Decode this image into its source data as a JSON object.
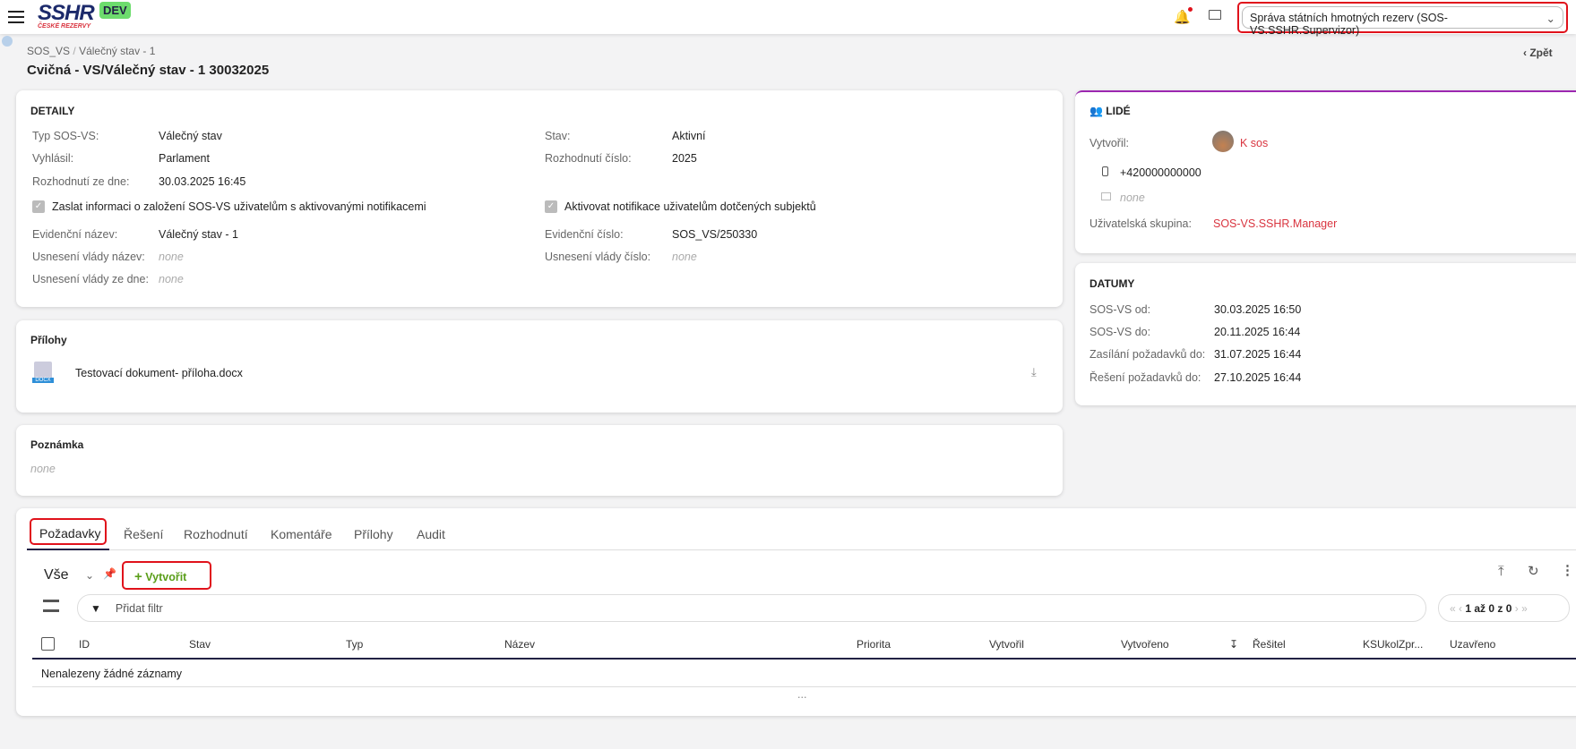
{
  "header": {
    "logo_text": "SSHR",
    "logo_sub": "ČESKÉ REZERVY",
    "env_badge": "DEV",
    "org_select": "Správa státních hmotných rezerv (SOS-VS.SSHR.Supervizor)",
    "colors": {
      "badge": "#6ddc6d",
      "accent": "#d9343f"
    }
  },
  "breadcrumb": [
    "SOS_VS",
    "Válečný stav - 1"
  ],
  "page_title": "Cvičná - VS/Válečný stav - 1 30032025",
  "back_label": "Zpět",
  "detail": {
    "title": "DETAILY",
    "fields": [
      {
        "label": "Typ SOS-VS:",
        "value": "Válečný stav"
      },
      {
        "label": "Stav:",
        "value": "Aktivní"
      },
      {
        "label": "Vyhlásil:",
        "value": "Parlament"
      },
      {
        "label": "Rozhodnutí číslo:",
        "value": "2025"
      },
      {
        "label": "Rozhodnutí ze dne:",
        "value": "30.03.2025 16:45"
      },
      {
        "label": "Evidenční název:",
        "value": "Válečný stav - 1"
      },
      {
        "label": "Evidenční číslo:",
        "value": "SOS_VS/250330"
      },
      {
        "label": "Usnesení vlády název:",
        "value": "none"
      },
      {
        "label": "Usnesení vlády číslo:",
        "value": "none"
      },
      {
        "label": "Usnesení vlády ze dne:",
        "value": "none"
      }
    ],
    "check1": "Zaslat informaci o založení SOS-VS uživatelům s aktivovanými notifikacemi",
    "check2": "Aktivovat notifikace uživatelům dotčených subjektů"
  },
  "attachments": {
    "title": "Přílohy",
    "file": "Testovací dokument- příloha.docx",
    "file_type": "DOCX"
  },
  "note": {
    "title": "Poznámka",
    "value": "none"
  },
  "people": {
    "title": "LIDÉ",
    "created_label": "Vytvořil:",
    "created_value": "K sos",
    "phone": "+420000000000",
    "email": "none",
    "group_label": "Uživatelská skupina:",
    "group_value": "SOS-VS.SSHR.Manager",
    "accent": "#9c27b0"
  },
  "dates": {
    "title": "DATUMY",
    "rows": [
      {
        "label": "SOS-VS od:",
        "value": "30.03.2025 16:50"
      },
      {
        "label": "SOS-VS do:",
        "value": "20.11.2025 16:44"
      },
      {
        "label": "Zasílání požadavků do:",
        "value": "31.07.2025 16:44"
      },
      {
        "label": "Řešení požadavků do:",
        "value": "27.10.2025 16:44"
      }
    ]
  },
  "tabs": [
    "Požadavky",
    "Řešení",
    "Rozhodnutí",
    "Komentáře",
    "Přílohy",
    "Audit"
  ],
  "toolbar": {
    "view": "Vše",
    "create": "Vytvořit",
    "filter_placeholder": "Přidat filtr",
    "pager": "1 až 0 z 0"
  },
  "table": {
    "columns": [
      "ID",
      "Stav",
      "Typ",
      "Název",
      "Priorita",
      "Vytvořil",
      "Vytvořeno",
      "Řešitel",
      "KSUkolZpr...",
      "Uzavřeno"
    ],
    "empty": "Nenalezeny žádné záznamy",
    "more": "..."
  }
}
